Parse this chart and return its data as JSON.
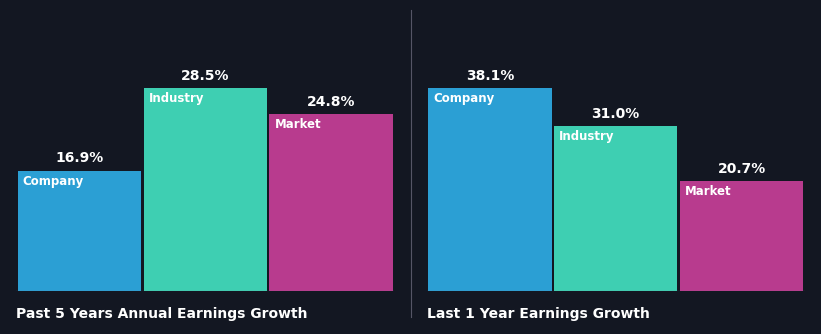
{
  "background_color": "#131722",
  "chart1": {
    "title": "Past 5 Years Annual Earnings Growth",
    "categories": [
      "Company",
      "Industry",
      "Market"
    ],
    "values": [
      16.9,
      28.5,
      24.8
    ],
    "colors": [
      "#2b9fd4",
      "#3ecfb2",
      "#b83b8e"
    ],
    "value_labels": [
      "16.9%",
      "28.5%",
      "24.8%"
    ]
  },
  "chart2": {
    "title": "Last 1 Year Earnings Growth",
    "categories": [
      "Company",
      "Industry",
      "Market"
    ],
    "values": [
      38.1,
      31.0,
      20.7
    ],
    "colors": [
      "#2b9fd4",
      "#3ecfb2",
      "#b83b8e"
    ],
    "value_labels": [
      "38.1%",
      "31.0%",
      "20.7%"
    ]
  },
  "text_color": "#ffffff",
  "label_fontsize": 8.5,
  "value_fontsize": 10,
  "title_fontsize": 10,
  "bar_width": 0.98,
  "separator_color": "#555566"
}
